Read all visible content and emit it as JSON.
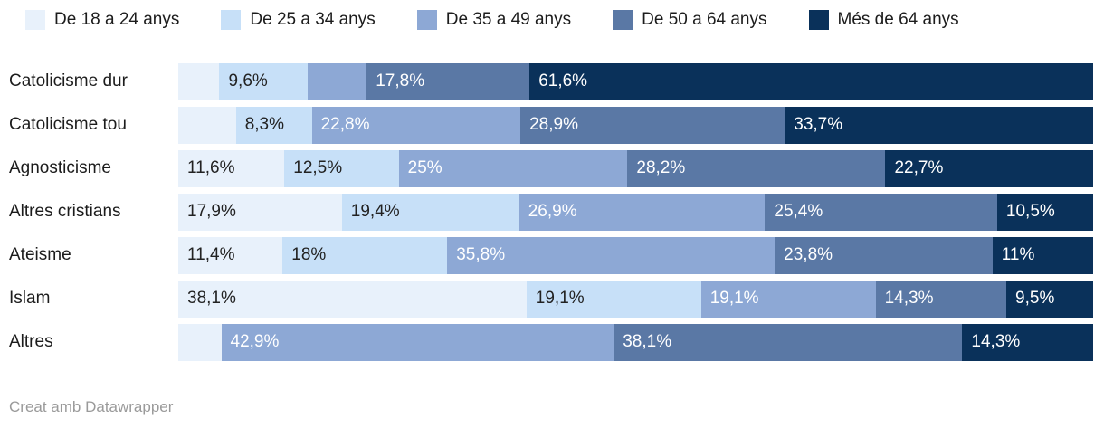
{
  "chart_data": {
    "type": "bar",
    "stacked": true,
    "orientation": "horizontal",
    "legend_position": "top",
    "xlim": [
      0,
      100
    ],
    "value_suffix": "%",
    "categories": [
      "Catolicisme dur",
      "Catolicisme tou",
      "Agnosticisme",
      "Altres cristians",
      "Ateisme",
      "Islam",
      "Altres"
    ],
    "series": [
      {
        "name": "De 18 a 24 anys",
        "color": "#e8f1fb",
        "label_color": "#222222",
        "values": [
          4.5,
          6.3,
          11.6,
          17.9,
          11.4,
          38.1,
          4.7
        ],
        "labels": [
          "",
          "",
          "11,6%",
          "17,9%",
          "11,4%",
          "38,1%",
          ""
        ]
      },
      {
        "name": "De 25 a 34 anys",
        "color": "#c7e0f8",
        "label_color": "#222222",
        "values": [
          9.6,
          8.3,
          12.5,
          19.4,
          18,
          19.1,
          0
        ],
        "labels": [
          "9,6%",
          "8,3%",
          "12,5%",
          "19,4%",
          "18%",
          "19,1%",
          ""
        ]
      },
      {
        "name": "De 35 a 49 anys",
        "color": "#8da8d5",
        "label_color": "#ffffff",
        "values": [
          6.5,
          22.8,
          25,
          26.9,
          35.8,
          19.1,
          42.9
        ],
        "labels": [
          "",
          "22,8%",
          "25%",
          "26,9%",
          "35,8%",
          "19,1%",
          "42,9%"
        ]
      },
      {
        "name": "De 50 a 64 anys",
        "color": "#5a78a5",
        "label_color": "#ffffff",
        "values": [
          17.8,
          28.9,
          28.2,
          25.4,
          23.8,
          14.3,
          38.1
        ],
        "labels": [
          "17,8%",
          "28,9%",
          "28,2%",
          "25,4%",
          "23,8%",
          "14,3%",
          "38,1%"
        ]
      },
      {
        "name": "Més de 64 anys",
        "color": "#0a315a",
        "label_color": "#ffffff",
        "values": [
          61.6,
          33.7,
          22.7,
          10.5,
          11,
          9.5,
          14.3
        ],
        "labels": [
          "61,6%",
          "33,7%",
          "22,7%",
          "10,5%",
          "11%",
          "9,5%",
          "14,3%"
        ]
      }
    ]
  },
  "footer": {
    "text": "Creat amb Datawrapper"
  }
}
